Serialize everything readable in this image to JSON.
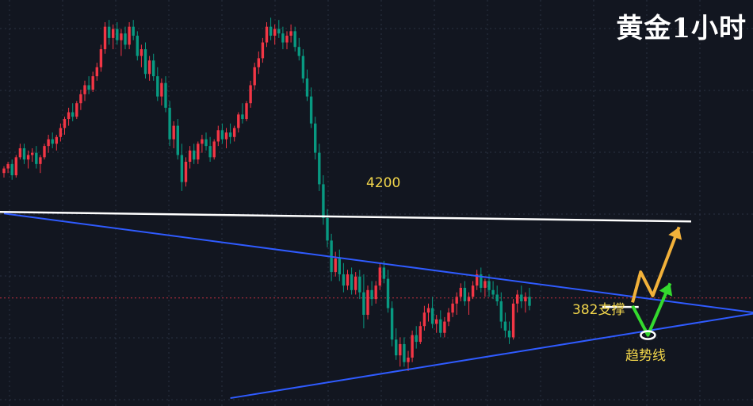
{
  "chart_data": {
    "type": "candlestick",
    "title": "黄金1小时",
    "annotations": {
      "resistance_label": "4200",
      "support_label": "382支撑",
      "trendline_label": "趋势线"
    },
    "candles": [
      [
        4236,
        4242,
        4232,
        4240
      ],
      [
        4240,
        4246,
        4236,
        4244
      ],
      [
        4244,
        4248,
        4230,
        4234
      ],
      [
        4234,
        4252,
        4232,
        4250
      ],
      [
        4250,
        4262,
        4248,
        4258
      ],
      [
        4258,
        4262,
        4244,
        4248
      ],
      [
        4248,
        4256,
        4240,
        4252
      ],
      [
        4252,
        4258,
        4246,
        4254
      ],
      [
        4254,
        4260,
        4240,
        4244
      ],
      [
        4244,
        4252,
        4236,
        4250
      ],
      [
        4250,
        4262,
        4248,
        4260
      ],
      [
        4260,
        4270,
        4254,
        4266
      ],
      [
        4266,
        4272,
        4258,
        4262
      ],
      [
        4262,
        4270,
        4256,
        4268
      ],
      [
        4268,
        4280,
        4264,
        4276
      ],
      [
        4276,
        4286,
        4270,
        4284
      ],
      [
        4284,
        4294,
        4278,
        4290
      ],
      [
        4290,
        4298,
        4282,
        4286
      ],
      [
        4286,
        4300,
        4284,
        4298
      ],
      [
        4298,
        4310,
        4292,
        4306
      ],
      [
        4306,
        4318,
        4300,
        4314
      ],
      [
        4314,
        4322,
        4306,
        4310
      ],
      [
        4310,
        4326,
        4308,
        4322
      ],
      [
        4322,
        4334,
        4318,
        4330
      ],
      [
        4330,
        4350,
        4326,
        4346
      ],
      [
        4346,
        4370,
        4342,
        4366
      ],
      [
        4366,
        4372,
        4350,
        4356
      ],
      [
        4356,
        4368,
        4346,
        4364
      ],
      [
        4364,
        4370,
        4350,
        4354
      ],
      [
        4354,
        4364,
        4340,
        4360
      ],
      [
        4360,
        4366,
        4346,
        4350
      ],
      [
        4350,
        4370,
        4346,
        4366
      ],
      [
        4366,
        4372,
        4354,
        4358
      ],
      [
        4358,
        4362,
        4336,
        4340
      ],
      [
        4340,
        4350,
        4330,
        4346
      ],
      [
        4346,
        4352,
        4320,
        4324
      ],
      [
        4324,
        4340,
        4318,
        4336
      ],
      [
        4336,
        4342,
        4318,
        4322
      ],
      [
        4322,
        4330,
        4300,
        4304
      ],
      [
        4304,
        4320,
        4296,
        4316
      ],
      [
        4316,
        4322,
        4290,
        4294
      ],
      [
        4294,
        4300,
        4260,
        4266
      ],
      [
        4266,
        4282,
        4258,
        4278
      ],
      [
        4278,
        4284,
        4248,
        4252
      ],
      [
        4252,
        4262,
        4220,
        4228
      ],
      [
        4228,
        4250,
        4224,
        4246
      ],
      [
        4246,
        4260,
        4240,
        4256
      ],
      [
        4256,
        4262,
        4244,
        4248
      ],
      [
        4248,
        4264,
        4244,
        4262
      ],
      [
        4262,
        4270,
        4254,
        4266
      ],
      [
        4266,
        4272,
        4256,
        4260
      ],
      [
        4260,
        4268,
        4246,
        4250
      ],
      [
        4250,
        4266,
        4248,
        4264
      ],
      [
        4264,
        4278,
        4260,
        4274
      ],
      [
        4274,
        4280,
        4262,
        4266
      ],
      [
        4266,
        4276,
        4258,
        4272
      ],
      [
        4272,
        4280,
        4262,
        4268
      ],
      [
        4268,
        4278,
        4264,
        4276
      ],
      [
        4276,
        4290,
        4272,
        4288
      ],
      [
        4288,
        4298,
        4280,
        4284
      ],
      [
        4284,
        4300,
        4282,
        4298
      ],
      [
        4298,
        4318,
        4294,
        4314
      ],
      [
        4314,
        4334,
        4310,
        4330
      ],
      [
        4330,
        4344,
        4324,
        4338
      ],
      [
        4338,
        4356,
        4334,
        4352
      ],
      [
        4352,
        4370,
        4348,
        4366
      ],
      [
        4366,
        4374,
        4354,
        4358
      ],
      [
        4358,
        4368,
        4350,
        4364
      ],
      [
        4364,
        4372,
        4356,
        4360
      ],
      [
        4360,
        4366,
        4346,
        4352
      ],
      [
        4352,
        4362,
        4346,
        4358
      ],
      [
        4358,
        4368,
        4352,
        4362
      ],
      [
        4362,
        4366,
        4344,
        4348
      ],
      [
        4348,
        4356,
        4336,
        4340
      ],
      [
        4340,
        4346,
        4316,
        4320
      ],
      [
        4320,
        4328,
        4300,
        4304
      ],
      [
        4304,
        4312,
        4276,
        4280
      ],
      [
        4280,
        4286,
        4248,
        4254
      ],
      [
        4254,
        4262,
        4220,
        4226
      ],
      [
        4226,
        4234,
        4190,
        4196
      ],
      [
        4196,
        4204,
        4170,
        4176
      ],
      [
        4176,
        4182,
        4140,
        4148
      ],
      [
        4148,
        4166,
        4144,
        4160
      ],
      [
        4160,
        4168,
        4140,
        4146
      ],
      [
        4146,
        4156,
        4130,
        4136
      ],
      [
        4136,
        4150,
        4132,
        4146
      ],
      [
        4146,
        4152,
        4128,
        4132
      ],
      [
        4132,
        4148,
        4128,
        4144
      ],
      [
        4144,
        4150,
        4124,
        4130
      ],
      [
        4130,
        4146,
        4098,
        4110
      ],
      [
        4110,
        4136,
        4106,
        4132
      ],
      [
        4132,
        4140,
        4118,
        4124
      ],
      [
        4124,
        4140,
        4120,
        4136
      ],
      [
        4136,
        4156,
        4132,
        4152
      ],
      [
        4152,
        4158,
        4138,
        4142
      ],
      [
        4142,
        4150,
        4112,
        4116
      ],
      [
        4116,
        4122,
        4082,
        4088
      ],
      [
        4088,
        4098,
        4070,
        4074
      ],
      [
        4074,
        4090,
        4064,
        4084
      ],
      [
        4084,
        4090,
        4064,
        4068
      ],
      [
        4068,
        4078,
        4060,
        4072
      ],
      [
        4072,
        4096,
        4068,
        4092
      ],
      [
        4092,
        4100,
        4080,
        4086
      ],
      [
        4086,
        4104,
        4084,
        4100
      ],
      [
        4100,
        4118,
        4096,
        4112
      ],
      [
        4112,
        4120,
        4104,
        4116
      ],
      [
        4116,
        4126,
        4098,
        4102
      ],
      [
        4102,
        4110,
        4094,
        4106
      ],
      [
        4106,
        4114,
        4090,
        4094
      ],
      [
        4094,
        4108,
        4090,
        4104
      ],
      [
        4104,
        4116,
        4100,
        4112
      ],
      [
        4112,
        4124,
        4108,
        4120
      ],
      [
        4120,
        4130,
        4110,
        4126
      ],
      [
        4126,
        4138,
        4122,
        4134
      ],
      [
        4134,
        4140,
        4118,
        4122
      ],
      [
        4122,
        4130,
        4110,
        4126
      ],
      [
        4126,
        4140,
        4124,
        4136
      ],
      [
        4136,
        4150,
        4132,
        4146
      ],
      [
        4146,
        4152,
        4130,
        4134
      ],
      [
        4134,
        4142,
        4126,
        4140
      ],
      [
        4140,
        4146,
        4126,
        4132
      ],
      [
        4132,
        4140,
        4124,
        4128
      ],
      [
        4128,
        4136,
        4118,
        4122
      ],
      [
        4122,
        4130,
        4098,
        4104
      ],
      [
        4104,
        4112,
        4090,
        4096
      ],
      [
        4096,
        4104,
        4084,
        4090
      ],
      [
        4090,
        4124,
        4088,
        4120
      ],
      [
        4120,
        4132,
        4112,
        4128
      ],
      [
        4128,
        4136,
        4116,
        4122
      ],
      [
        4122,
        4130,
        4112,
        4126
      ],
      [
        4126,
        4134,
        4114,
        4118
      ]
    ],
    "resistance_level": 4200,
    "current_price": 4125,
    "support_382": 4117,
    "upper_trendline": [
      [
        0,
        4200
      ],
      [
        156,
        4126
      ]
    ],
    "lower_trendline": [
      [
        56,
        4036
      ],
      [
        156,
        4094
      ]
    ],
    "colors": {
      "background": "#121620",
      "up": "#f23645",
      "down": "#089981",
      "trendline": "#2f5bff",
      "resistance": "#ffffff",
      "arrow_orange": "#f2b13a",
      "arrow_green": "#34d92e",
      "label": "#f2d64b",
      "price_line": "#c03040"
    },
    "grid": true
  }
}
